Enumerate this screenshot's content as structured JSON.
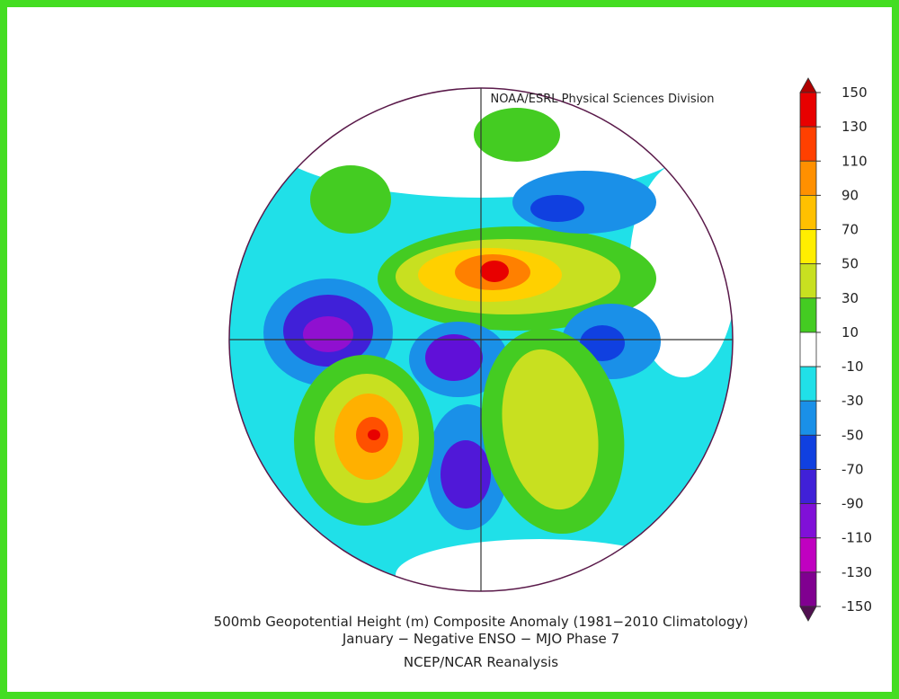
{
  "credit": "NOAA/ESRL Physical Sciences Division",
  "title": [
    "500mb Geopotential Height (m) Composite Anomaly (1981−2010 Climatology)",
    "January − Negative ENSO − MJO Phase 7"
  ],
  "source": "NCEP/NCAR Reanalysis",
  "colorbar": {
    "levels": [
      150,
      130,
      110,
      90,
      70,
      50,
      30,
      10,
      -10,
      -30,
      -50,
      -70,
      -90,
      -110,
      -130,
      -150
    ],
    "colors": [
      "#b00000",
      "#e80000",
      "#ff4000",
      "#ff9000",
      "#ffc000",
      "#ffee00",
      "#c8e020",
      "#44cc22",
      "#ffffff",
      "#20e0e8",
      "#1a90e8",
      "#1040e0",
      "#4020d8",
      "#8010d8",
      "#c000c0",
      "#800090",
      "#501050"
    ]
  }
}
